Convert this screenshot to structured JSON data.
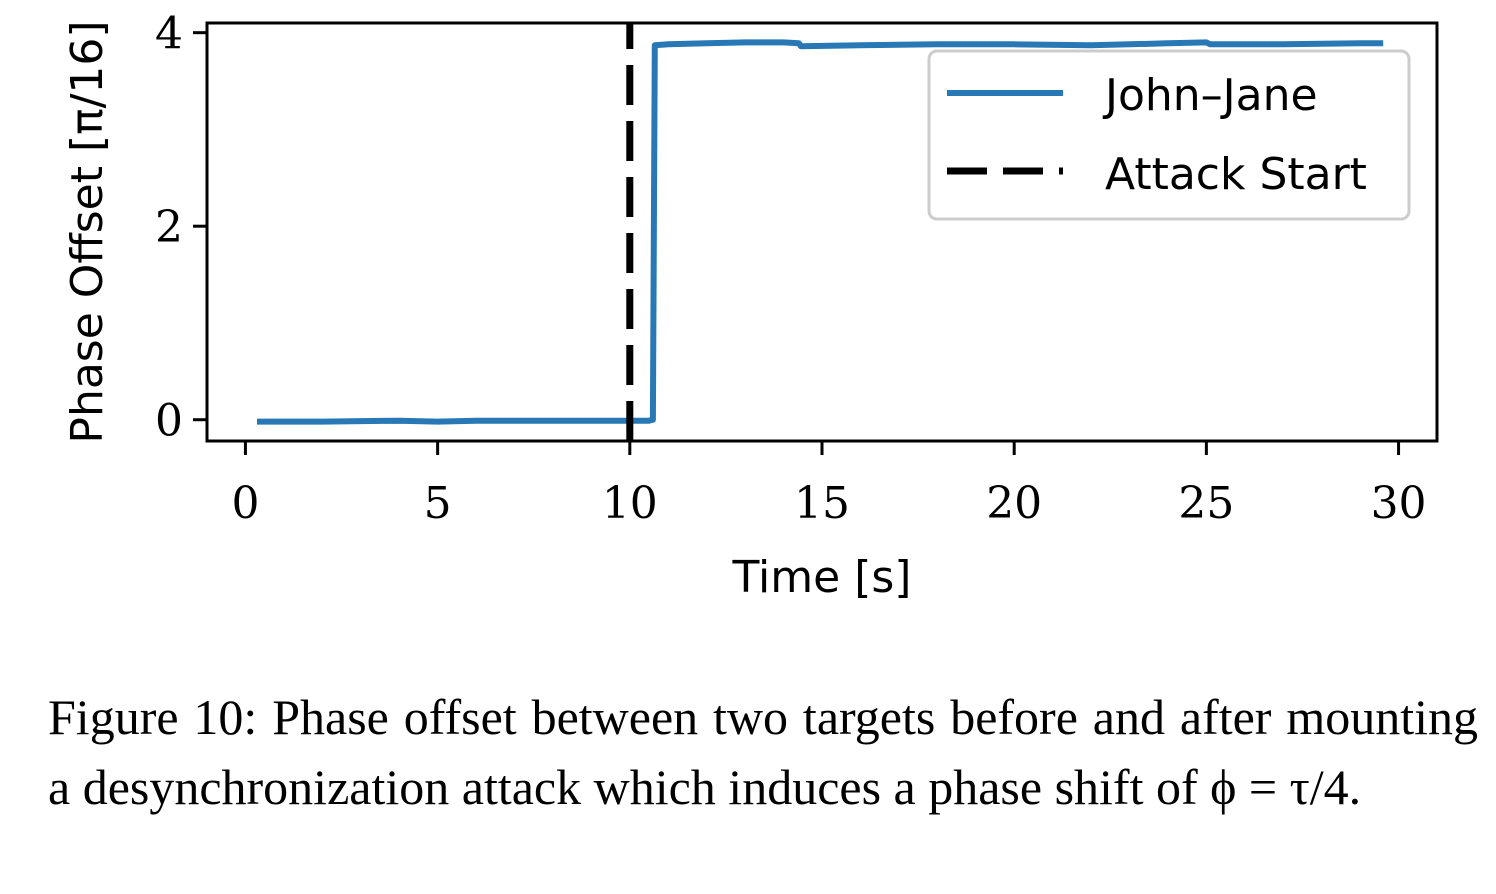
{
  "chart_data": {
    "type": "line",
    "xlabel": "Time [s]",
    "ylabel": "Phase Offset [π/16]",
    "xlim": [
      -1,
      31
    ],
    "ylim": [
      -0.22,
      4.1
    ],
    "xticks": [
      0,
      5,
      10,
      15,
      20,
      25,
      30
    ],
    "yticks": [
      0,
      2,
      4
    ],
    "grid": false,
    "legend_position": "top-right",
    "series": [
      {
        "name": "John–Jane",
        "color": "#2878b5",
        "style": "solid",
        "x": [
          0.3,
          2,
          4,
          5,
          6,
          8,
          9.5,
          10.5,
          10.6,
          10.65,
          11,
          12,
          13,
          14,
          14.4,
          14.45,
          16,
          18,
          20,
          22,
          24,
          25,
          25.1,
          27,
          29,
          29.6
        ],
        "y": [
          -0.02,
          -0.02,
          -0.01,
          -0.02,
          -0.01,
          -0.01,
          -0.01,
          -0.01,
          0.0,
          3.87,
          3.88,
          3.89,
          3.9,
          3.9,
          3.89,
          3.86,
          3.87,
          3.88,
          3.88,
          3.87,
          3.89,
          3.9,
          3.88,
          3.88,
          3.89,
          3.89
        ]
      },
      {
        "name": "Attack Start",
        "color": "#000000",
        "style": "dashed",
        "x": [
          10,
          10
        ],
        "y": [
          -0.22,
          4.1
        ]
      }
    ]
  },
  "caption": "Figure 10: Phase offset between two targets before and after mounting a desynchronization attack which induces a phase shift of ϕ = τ/4."
}
